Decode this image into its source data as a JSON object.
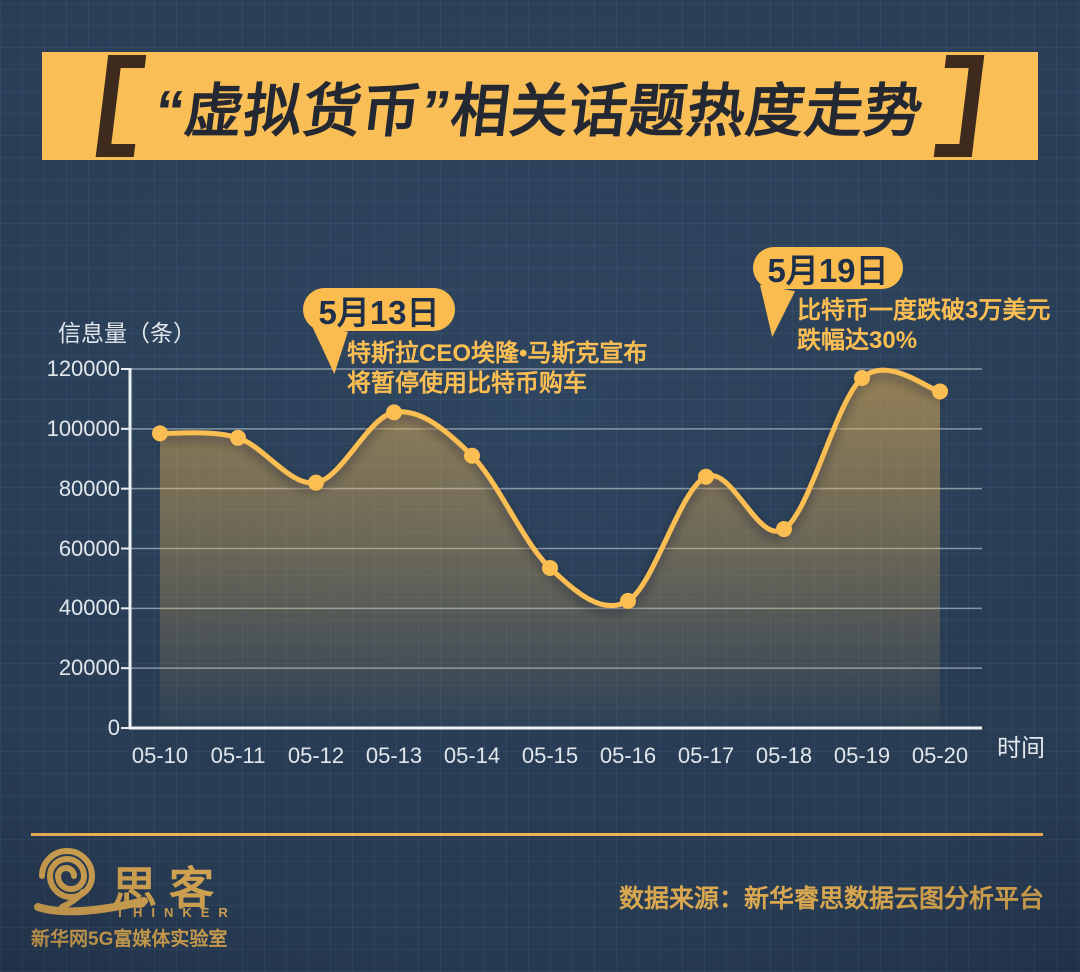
{
  "title": {
    "text": "“虚拟货币”相关话题热度走势"
  },
  "chart_data": {
    "type": "area",
    "x": [
      "05-10",
      "05-11",
      "05-12",
      "05-13",
      "05-14",
      "05-15",
      "05-16",
      "05-17",
      "05-18",
      "05-19",
      "05-20"
    ],
    "series": [
      {
        "name": "信息量",
        "values": [
          98500,
          97000,
          82000,
          105500,
          91000,
          53500,
          42500,
          84000,
          66500,
          117000,
          112500
        ]
      }
    ],
    "title": "“虚拟货币”相关话题热度走势",
    "xlabel": "时间",
    "ylabel": "信息量（条）",
    "ylim": [
      0,
      120000
    ],
    "yticks": [
      0,
      20000,
      40000,
      60000,
      80000,
      100000,
      120000
    ],
    "grid": true,
    "smooth": true,
    "line_color": "#FBBE52",
    "point_color": "#FBBE52",
    "legend_position": "none"
  },
  "annotations": [
    {
      "date": "5月13日",
      "lines": [
        "特斯拉CEO埃隆•马斯克宣布",
        "将暂停使用比特币购车"
      ]
    },
    {
      "date": "5月19日",
      "lines": [
        "比特币一度跌破3万美元",
        "跌幅达30%"
      ]
    }
  ],
  "footer": {
    "logo_cn": "思客",
    "logo_en": "THINKER",
    "lab": "新华网5G富媒体实验室",
    "source": "数据来源：新华睿思数据云图分析平台"
  },
  "colors": {
    "background": "#2A3F58",
    "banner_yellow": "#F9BE55",
    "bracket_brown": "#3E2B1D",
    "accent_yellow": "#FBBE52",
    "axis_text": "#E2E7EC",
    "footer_gold": "#D2A351",
    "source_gold": "#D9A74F"
  }
}
